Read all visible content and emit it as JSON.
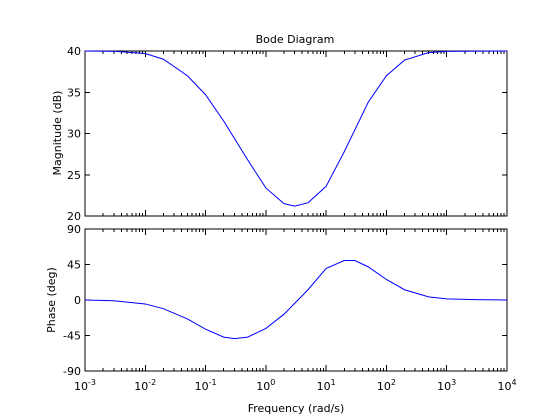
{
  "chart_data": [
    {
      "type": "line",
      "title": "Bode Diagram",
      "ylabel": "Magnitude (dB)",
      "xlabel": "",
      "xscale": "log",
      "xlim": [
        0.001,
        10000
      ],
      "ylim": [
        20,
        40
      ],
      "yticks": [
        20,
        25,
        30,
        35,
        40
      ],
      "grid": false,
      "series": [
        {
          "color": "#0000ff",
          "x": [
            0.001,
            0.0032,
            0.01,
            0.02,
            0.05,
            0.1,
            0.2,
            0.5,
            1,
            2,
            3,
            5,
            10,
            20,
            50,
            100,
            200,
            500,
            1000,
            10000
          ],
          "y": [
            40,
            39.95,
            39.7,
            39.0,
            37.0,
            34.7,
            31.5,
            26.8,
            23.4,
            21.5,
            21.2,
            21.6,
            23.6,
            27.8,
            33.8,
            37.0,
            38.9,
            39.8,
            39.95,
            40
          ]
        }
      ]
    },
    {
      "type": "line",
      "title": "",
      "ylabel": "Phase (deg)",
      "xlabel": "Frequency  (rad/s)",
      "xscale": "log",
      "xlim": [
        0.001,
        10000
      ],
      "ylim": [
        -90,
        90
      ],
      "yticks": [
        -90,
        -45,
        0,
        45,
        90
      ],
      "xticks": [
        {
          "base": "10",
          "exp": "-3"
        },
        {
          "base": "10",
          "exp": "-2"
        },
        {
          "base": "10",
          "exp": "-1"
        },
        {
          "base": "10",
          "exp": "0"
        },
        {
          "base": "10",
          "exp": "1"
        },
        {
          "base": "10",
          "exp": "2"
        },
        {
          "base": "10",
          "exp": "3"
        },
        {
          "base": "10",
          "exp": "4"
        }
      ],
      "grid": false,
      "series": [
        {
          "color": "#0000ff",
          "x": [
            0.001,
            0.003,
            0.01,
            0.02,
            0.05,
            0.1,
            0.2,
            0.3,
            0.5,
            1,
            2,
            5,
            10,
            20,
            30,
            50,
            100,
            200,
            500,
            1000,
            3000,
            10000
          ],
          "y": [
            0,
            -1,
            -5,
            -11,
            -24,
            -37,
            -47,
            -49,
            -47,
            -36,
            -18,
            13,
            40,
            50,
            50,
            42,
            26,
            13,
            4,
            1.5,
            0.5,
            0
          ]
        }
      ]
    }
  ]
}
